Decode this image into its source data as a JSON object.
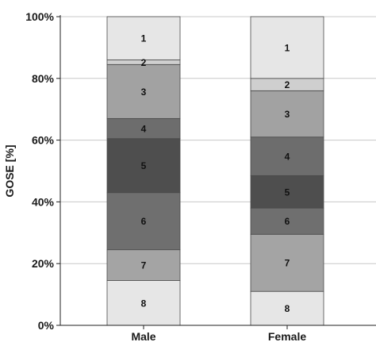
{
  "chart_data": {
    "type": "bar",
    "stacked": true,
    "categories": [
      "Male",
      "Female"
    ],
    "ylabel": "GOSE [%]",
    "xlabel": "",
    "ylim": [
      0,
      100
    ],
    "yticks": [
      0,
      20,
      40,
      60,
      80,
      100
    ],
    "ytick_labels": [
      "0%",
      "20%",
      "40%",
      "60%",
      "80%",
      "100%"
    ],
    "grid": true,
    "legend": "none",
    "series": [
      {
        "label": "8",
        "color": "#e6e6e6",
        "values": [
          14.5,
          11.0
        ]
      },
      {
        "label": "7",
        "color": "#a4a4a4",
        "values": [
          10.0,
          18.5
        ]
      },
      {
        "label": "6",
        "color": "#6f6f6f",
        "values": [
          18.5,
          8.5
        ]
      },
      {
        "label": "5",
        "color": "#4e4e4e",
        "values": [
          17.5,
          10.5
        ]
      },
      {
        "label": "4",
        "color": "#6d6d6d",
        "values": [
          6.5,
          12.5
        ]
      },
      {
        "label": "3",
        "color": "#a2a2a2",
        "values": [
          17.5,
          15.0
        ]
      },
      {
        "label": "2",
        "color": "#cfcfcf",
        "values": [
          1.5,
          4.0
        ]
      },
      {
        "label": "1",
        "color": "#e6e6e6",
        "values": [
          14.0,
          20.0
        ]
      }
    ]
  }
}
